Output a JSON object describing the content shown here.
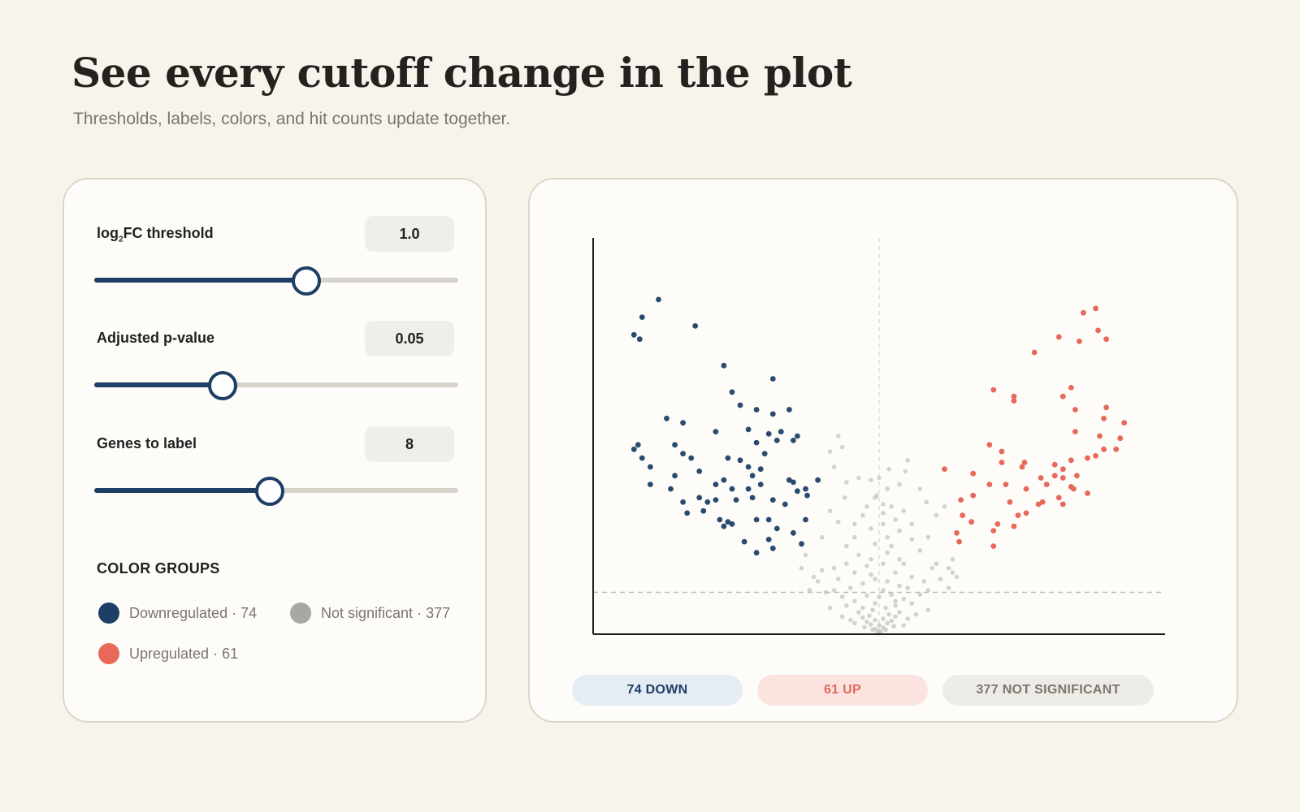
{
  "header": {
    "title": "See every cutoff change in the plot",
    "subtitle": "Thresholds, labels, colors, and hit counts update together."
  },
  "controls": {
    "log2fc": {
      "label_pre": "log",
      "label_sub": "2",
      "label_post": "FC threshold",
      "value": "1.0",
      "slider_fraction": 0.58
    },
    "pvalue": {
      "label": "Adjusted p-value",
      "value": "0.05",
      "slider_fraction": 0.35
    },
    "genes": {
      "label": "Genes to label",
      "value": "8",
      "slider_fraction": 0.48
    },
    "color_groups": {
      "heading": "COLOR GROUPS",
      "down": {
        "label": "Downregulated",
        "sep": " · ",
        "count": "74",
        "color": "#1d3f66"
      },
      "ns": {
        "label": "Not significant",
        "sep": " · ",
        "count": "377",
        "color": "#a9a7a1"
      },
      "up": {
        "label": "Upregulated",
        "sep": " · ",
        "count": "61",
        "color": "#e8685a"
      }
    }
  },
  "pills": {
    "down": "74 DOWN",
    "up": "61 UP",
    "ns": "377 NOT SIGNIFICANT"
  },
  "chart_data": {
    "type": "scatter",
    "title": "",
    "xlabel": "",
    "ylabel": "",
    "xlim": [
      -3.5,
      3.5
    ],
    "ylim": [
      0,
      9
    ],
    "log2fc_cutoff": 1.0,
    "pvalue_cutoff_line_y": 0.95,
    "center_line_x": 0,
    "series": [
      {
        "group": "down",
        "color": "#2a4a70",
        "points": [
          [
            -2.7,
            7.6
          ],
          [
            -2.9,
            7.2
          ],
          [
            -3.0,
            6.8
          ],
          [
            -2.93,
            6.7
          ],
          [
            -2.25,
            7.0
          ],
          [
            -1.9,
            6.1
          ],
          [
            -1.3,
            5.8
          ],
          [
            -1.8,
            5.5
          ],
          [
            -1.7,
            5.2
          ],
          [
            -1.5,
            5.1
          ],
          [
            -1.3,
            5.0
          ],
          [
            -1.1,
            5.1
          ],
          [
            -2.6,
            4.9
          ],
          [
            -2.4,
            4.8
          ],
          [
            -2.0,
            4.6
          ],
          [
            -1.6,
            4.65
          ],
          [
            -1.2,
            4.6
          ],
          [
            -1.35,
            4.55
          ],
          [
            -1.0,
            4.5
          ],
          [
            -1.05,
            4.4
          ],
          [
            -1.25,
            4.4
          ],
          [
            -1.5,
            4.35
          ],
          [
            -1.4,
            4.1
          ],
          [
            -2.5,
            4.3
          ],
          [
            -2.4,
            4.1
          ],
          [
            -2.95,
            4.3
          ],
          [
            -3.0,
            4.2
          ],
          [
            -2.9,
            4.0
          ],
          [
            -2.3,
            4.0
          ],
          [
            -1.85,
            4.0
          ],
          [
            -2.8,
            3.8
          ],
          [
            -2.2,
            3.7
          ],
          [
            -1.9,
            3.5
          ],
          [
            -1.55,
            3.6
          ],
          [
            -1.6,
            3.8
          ],
          [
            -1.7,
            3.95
          ],
          [
            -1.45,
            3.75
          ],
          [
            -2.5,
            3.6
          ],
          [
            -2.55,
            3.3
          ],
          [
            -2.0,
            3.4
          ],
          [
            -1.8,
            3.3
          ],
          [
            -1.6,
            3.3
          ],
          [
            -1.45,
            3.4
          ],
          [
            -1.1,
            3.5
          ],
          [
            -1.05,
            3.45
          ],
          [
            -1.0,
            3.25
          ],
          [
            -0.75,
            3.5
          ],
          [
            -0.9,
            3.3
          ],
          [
            -2.8,
            3.4
          ],
          [
            -2.2,
            3.1
          ],
          [
            -1.75,
            3.05
          ],
          [
            -2.0,
            3.05
          ],
          [
            -1.55,
            3.1
          ],
          [
            -1.3,
            3.05
          ],
          [
            -1.15,
            2.95
          ],
          [
            -0.88,
            3.15
          ],
          [
            -2.4,
            3.0
          ],
          [
            -2.1,
            3.0
          ],
          [
            -2.35,
            2.75
          ],
          [
            -2.15,
            2.8
          ],
          [
            -1.85,
            2.55
          ],
          [
            -1.8,
            2.5
          ],
          [
            -1.95,
            2.6
          ],
          [
            -1.9,
            2.45
          ],
          [
            -1.5,
            2.6
          ],
          [
            -1.35,
            2.6
          ],
          [
            -1.25,
            2.4
          ],
          [
            -1.05,
            2.3
          ],
          [
            -0.9,
            2.6
          ],
          [
            -0.95,
            2.05
          ],
          [
            -1.65,
            2.1
          ],
          [
            -1.35,
            2.15
          ],
          [
            -1.3,
            1.95
          ],
          [
            -1.5,
            1.85
          ]
        ]
      },
      {
        "group": "up",
        "color": "#e8685a",
        "points": [
          [
            2.5,
            7.3
          ],
          [
            2.65,
            7.4
          ],
          [
            2.68,
            6.9
          ],
          [
            2.78,
            6.7
          ],
          [
            2.45,
            6.65
          ],
          [
            2.2,
            6.75
          ],
          [
            1.9,
            6.4
          ],
          [
            2.35,
            5.6
          ],
          [
            2.25,
            5.4
          ],
          [
            1.4,
            5.55
          ],
          [
            1.65,
            5.4
          ],
          [
            1.65,
            5.3
          ],
          [
            2.4,
            5.1
          ],
          [
            2.78,
            5.15
          ],
          [
            3.0,
            4.8
          ],
          [
            2.75,
            4.9
          ],
          [
            2.4,
            4.6
          ],
          [
            1.35,
            4.3
          ],
          [
            1.5,
            4.15
          ],
          [
            2.7,
            4.5
          ],
          [
            2.75,
            4.2
          ],
          [
            2.95,
            4.45
          ],
          [
            2.9,
            4.2
          ],
          [
            2.65,
            4.05
          ],
          [
            2.55,
            4.0
          ],
          [
            2.35,
            3.95
          ],
          [
            2.15,
            3.85
          ],
          [
            2.25,
            3.75
          ],
          [
            1.78,
            3.9
          ],
          [
            1.75,
            3.8
          ],
          [
            1.5,
            3.9
          ],
          [
            1.15,
            3.65
          ],
          [
            0.8,
            3.75
          ],
          [
            2.15,
            3.6
          ],
          [
            2.25,
            3.55
          ],
          [
            2.42,
            3.6
          ],
          [
            1.98,
            3.55
          ],
          [
            2.35,
            3.35
          ],
          [
            2.55,
            3.2
          ],
          [
            2.38,
            3.3
          ],
          [
            1.35,
            3.4
          ],
          [
            1.55,
            3.4
          ],
          [
            1.8,
            3.3
          ],
          [
            2.05,
            3.4
          ],
          [
            2.2,
            3.1
          ],
          [
            2.25,
            2.95
          ],
          [
            1.0,
            3.05
          ],
          [
            1.15,
            3.15
          ],
          [
            1.6,
            3.0
          ],
          [
            1.95,
            2.95
          ],
          [
            2.0,
            3.0
          ],
          [
            1.8,
            2.75
          ],
          [
            1.7,
            2.7
          ],
          [
            1.02,
            2.7
          ],
          [
            1.13,
            2.55
          ],
          [
            1.45,
            2.5
          ],
          [
            1.65,
            2.45
          ],
          [
            0.95,
            2.3
          ],
          [
            1.4,
            2.35
          ],
          [
            0.98,
            2.1
          ],
          [
            1.4,
            2.0
          ]
        ]
      },
      {
        "group": "ns",
        "color": "#c6c4bd",
        "points": [
          [
            -0.5,
            4.5
          ],
          [
            -0.45,
            4.25
          ],
          [
            -0.6,
            4.15
          ],
          [
            0.35,
            3.95
          ],
          [
            0.32,
            3.7
          ],
          [
            0.0,
            3.55
          ],
          [
            -0.1,
            3.5
          ],
          [
            -0.25,
            3.55
          ],
          [
            -0.4,
            3.45
          ],
          [
            -0.42,
            3.1
          ],
          [
            0.25,
            3.4
          ],
          [
            0.1,
            3.3
          ],
          [
            -0.05,
            3.1
          ],
          [
            0.05,
            2.95
          ],
          [
            0.15,
            2.9
          ],
          [
            0.58,
            3.0
          ],
          [
            0.8,
            2.9
          ],
          [
            0.3,
            2.8
          ],
          [
            -0.15,
            2.9
          ],
          [
            -0.5,
            2.55
          ],
          [
            -0.3,
            2.5
          ],
          [
            0.4,
            2.5
          ],
          [
            0.2,
            2.6
          ],
          [
            0.05,
            2.5
          ],
          [
            -0.1,
            2.4
          ],
          [
            -0.3,
            2.2
          ],
          [
            0.1,
            2.2
          ],
          [
            0.4,
            2.15
          ],
          [
            0.15,
            2.0
          ],
          [
            -0.4,
            2.0
          ],
          [
            0.5,
            1.9
          ],
          [
            -0.25,
            1.8
          ],
          [
            0.25,
            1.7
          ],
          [
            -0.1,
            1.7
          ],
          [
            0.05,
            1.6
          ],
          [
            0.3,
            1.6
          ],
          [
            -0.4,
            1.6
          ],
          [
            0.7,
            1.6
          ],
          [
            -0.55,
            1.5
          ],
          [
            0.65,
            1.5
          ],
          [
            -0.7,
            1.45
          ],
          [
            0.85,
            1.5
          ],
          [
            -0.95,
            1.5
          ],
          [
            0.9,
            1.4
          ],
          [
            -0.3,
            1.4
          ],
          [
            0.2,
            1.4
          ],
          [
            -0.1,
            1.35
          ],
          [
            0.4,
            1.3
          ],
          [
            -0.5,
            1.25
          ],
          [
            0.55,
            1.2
          ],
          [
            -0.75,
            1.2
          ],
          [
            0.75,
            1.25
          ],
          [
            -0.8,
            1.3
          ],
          [
            0.95,
            1.3
          ],
          [
            -0.05,
            1.25
          ],
          [
            0.1,
            1.2
          ],
          [
            -0.2,
            1.15
          ],
          [
            0.25,
            1.1
          ],
          [
            -0.35,
            1.05
          ],
          [
            0.35,
            1.05
          ],
          [
            -0.55,
            1.0
          ],
          [
            0.6,
            1.0
          ],
          [
            -0.65,
            0.95
          ],
          [
            0.5,
            0.9
          ],
          [
            -0.45,
            0.85
          ],
          [
            0.15,
            0.9
          ],
          [
            -0.15,
            0.88
          ],
          [
            0.0,
            0.85
          ],
          [
            0.3,
            0.8
          ],
          [
            -0.3,
            0.75
          ],
          [
            0.4,
            0.7
          ],
          [
            -0.4,
            0.65
          ],
          [
            0.2,
            0.65
          ],
          [
            -0.2,
            0.6
          ],
          [
            0.08,
            0.6
          ],
          [
            -0.08,
            0.55
          ],
          [
            0.25,
            0.5
          ],
          [
            -0.25,
            0.5
          ],
          [
            0.12,
            0.45
          ],
          [
            -0.12,
            0.42
          ],
          [
            0.2,
            0.4
          ],
          [
            -0.2,
            0.38
          ],
          [
            0.05,
            0.35
          ],
          [
            -0.05,
            0.32
          ],
          [
            0.15,
            0.3
          ],
          [
            -0.15,
            0.28
          ],
          [
            0.1,
            0.25
          ],
          [
            -0.1,
            0.22
          ],
          [
            0.0,
            0.2
          ],
          [
            0.05,
            0.15
          ],
          [
            -0.05,
            0.12
          ],
          [
            0.08,
            0.1
          ],
          [
            -0.08,
            0.1
          ],
          [
            0.0,
            0.08
          ],
          [
            0.02,
            0.05
          ],
          [
            -0.02,
            0.05
          ],
          [
            0.0,
            0.02
          ],
          [
            0.3,
            0.2
          ],
          [
            -0.3,
            0.25
          ],
          [
            0.45,
            0.45
          ],
          [
            -0.45,
            0.4
          ],
          [
            0.6,
            0.55
          ],
          [
            -0.6,
            0.6
          ],
          [
            0.35,
            0.35
          ],
          [
            -0.35,
            0.32
          ],
          [
            0.18,
            0.18
          ],
          [
            -0.18,
            0.16
          ],
          [
            0.9,
            1.7
          ],
          [
            -0.9,
            1.8
          ],
          [
            0.7,
            2.7
          ],
          [
            -0.7,
            2.2
          ],
          [
            0.5,
            3.3
          ],
          [
            -0.55,
            3.8
          ],
          [
            0.12,
            3.75
          ],
          [
            -0.03,
            3.15
          ],
          [
            0.05,
            2.75
          ],
          [
            -0.2,
            2.7
          ],
          [
            0.25,
            2.35
          ],
          [
            -0.05,
            2.05
          ],
          [
            0.1,
            1.85
          ],
          [
            -0.15,
            1.55
          ],
          [
            0.05,
            1.0
          ],
          [
            -0.05,
            0.7
          ],
          [
            0.2,
            0.75
          ],
          [
            -0.6,
            2.8
          ],
          [
            0.6,
            2.2
          ],
          [
            -0.85,
            1.0
          ],
          [
            0.85,
            1.05
          ]
        ]
      }
    ]
  }
}
